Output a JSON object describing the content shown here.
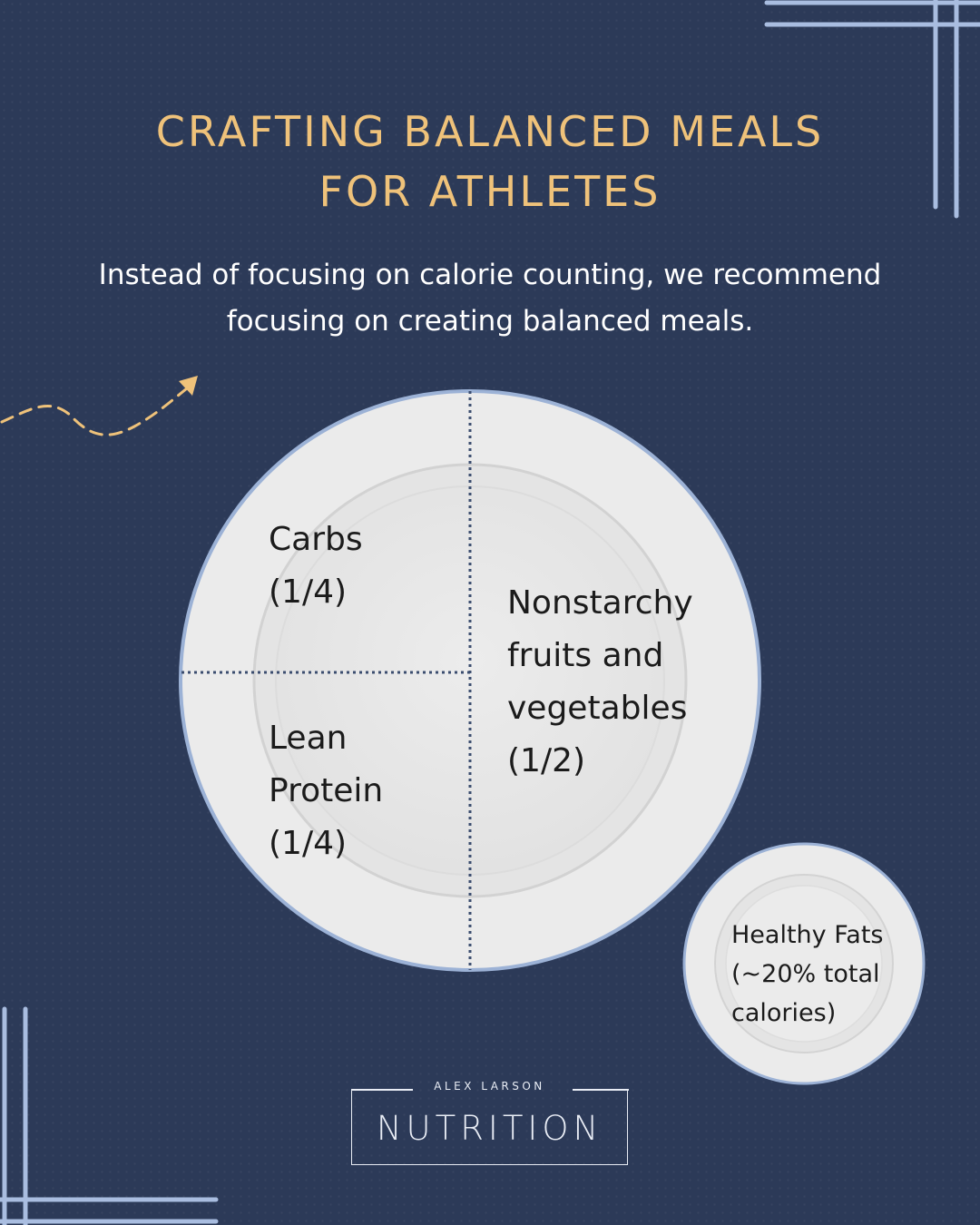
{
  "header": {
    "title_line1": "CRAFTING BALANCED MEALS",
    "title_line2": "FOR ATHLETES",
    "subtitle_line1": "Instead of focusing on calorie counting, we recommend",
    "subtitle_line2": "focusing on creating balanced meals."
  },
  "plate": {
    "carbs": {
      "line1": "Carbs",
      "line2": "(1/4)"
    },
    "protein": {
      "line1": "Lean",
      "line2": "Protein",
      "line3": "(1/4)"
    },
    "vegetables": {
      "line1": "Nonstarchy",
      "line2": "fruits and",
      "line3": "vegetables",
      "line4": "(1/2)"
    }
  },
  "side_plate": {
    "line1": "Healthy Fats",
    "line2": "(~20% total",
    "line3": "calories)"
  },
  "logo": {
    "small": "ALEX LARSON",
    "big": "NUTRITION"
  },
  "colors": {
    "background": "#2c3a58",
    "accent_gold": "#efc27a",
    "frame_lines": "#a9bde0",
    "plate": "#ececec",
    "plate_rim": "#9cb2d6"
  },
  "icons": {
    "arrow": "dashed-curved-arrow-icon"
  }
}
